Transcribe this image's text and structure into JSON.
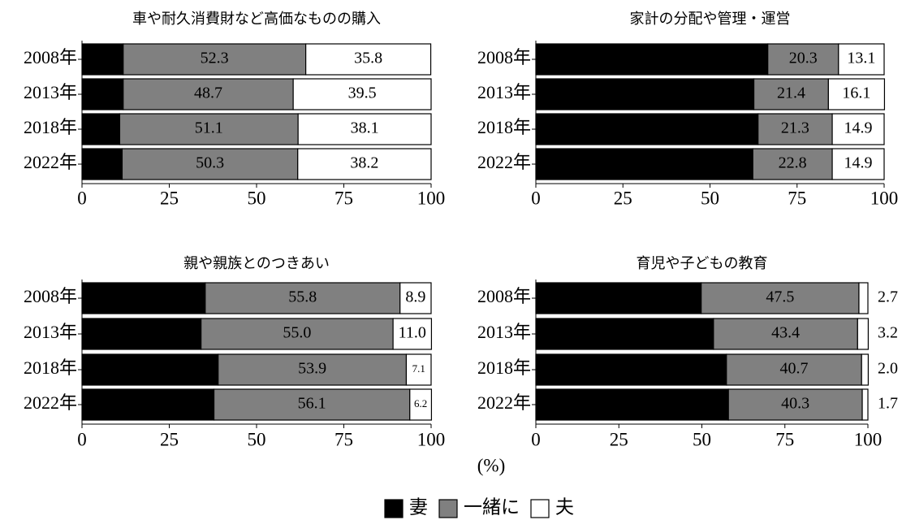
{
  "chart_data": [
    {
      "type": "bar",
      "orientation": "horizontal",
      "stacked": true,
      "title": "車や耐久消費財など高価なものの購入",
      "categories": [
        "2008年",
        "2013年",
        "2018年",
        "2022年"
      ],
      "series": [
        {
          "values": [
            11.8,
            11.8,
            10.8,
            11.5
          ],
          "value_labels": [
            "11.8",
            "11.8",
            "10.8",
            "11.5"
          ]
        },
        {
          "values": [
            52.3,
            48.7,
            51.1,
            50.3
          ],
          "value_labels": [
            "52.3",
            "48.7",
            "51.1",
            "50.3"
          ]
        },
        {
          "values": [
            35.8,
            39.5,
            38.1,
            38.2
          ],
          "value_labels": [
            "35.8",
            "39.5",
            "38.1",
            "38.2"
          ]
        }
      ],
      "xlim": [
        0,
        100
      ],
      "xticks": [
        0,
        25,
        50,
        75,
        100
      ]
    },
    {
      "type": "bar",
      "orientation": "horizontal",
      "stacked": true,
      "title": "家計の分配や管理・運営",
      "categories": [
        "2008年",
        "2013年",
        "2018年",
        "2022年"
      ],
      "series": [
        {
          "values": [
            66.6,
            62.6,
            63.8,
            62.3
          ],
          "value_labels": [
            "66.6",
            "62.6",
            "63.8",
            "62.3"
          ]
        },
        {
          "values": [
            20.3,
            21.4,
            21.3,
            22.8
          ],
          "value_labels": [
            "20.3",
            "21.4",
            "21.3",
            "22.8"
          ]
        },
        {
          "values": [
            13.1,
            16.1,
            14.9,
            14.9
          ],
          "value_labels": [
            "13.1",
            "16.1",
            "14.9",
            "14.9"
          ]
        }
      ],
      "xlim": [
        0,
        100
      ],
      "xticks": [
        0,
        25,
        50,
        75,
        100
      ]
    },
    {
      "type": "bar",
      "orientation": "horizontal",
      "stacked": true,
      "title": "親や親族とのつきあい",
      "categories": [
        "2008年",
        "2013年",
        "2018年",
        "2022年"
      ],
      "series": [
        {
          "values": [
            35.3,
            34.1,
            39.0,
            37.8
          ],
          "value_labels": [
            "35.3",
            "34.1",
            "39.0",
            "37.8"
          ]
        },
        {
          "values": [
            55.8,
            55.0,
            53.9,
            56.1
          ],
          "value_labels": [
            "55.8",
            "55.0",
            "53.9",
            "56.1"
          ]
        },
        {
          "values": [
            8.9,
            11.0,
            7.1,
            6.2
          ],
          "value_labels": [
            "8.9",
            "11.0",
            "7.1",
            "6.2"
          ]
        }
      ],
      "xlim": [
        0,
        100
      ],
      "xticks": [
        0,
        25,
        50,
        75,
        100
      ]
    },
    {
      "type": "bar",
      "orientation": "horizontal",
      "stacked": true,
      "title": "育児や子どもの教育",
      "categories": [
        "2008年",
        "2013年",
        "2018年",
        "2022年"
      ],
      "series": [
        {
          "values": [
            49.8,
            53.5,
            57.4,
            58.0
          ],
          "value_labels": [
            "49.8",
            "53.5",
            "57.4",
            "58.0"
          ]
        },
        {
          "values": [
            47.5,
            43.4,
            40.7,
            40.3
          ],
          "value_labels": [
            "47.5",
            "43.4",
            "40.7",
            "40.3"
          ]
        },
        {
          "values": [
            2.7,
            3.2,
            2.0,
            1.7
          ],
          "value_labels": [
            "2.7",
            "3.2",
            "2.0",
            "1.7"
          ]
        }
      ],
      "xlim": [
        0,
        100
      ],
      "xticks": [
        0,
        25,
        50,
        75,
        100
      ]
    }
  ],
  "legend": [
    {
      "name": "妻",
      "color": "#000000",
      "label_color": "#ffffff"
    },
    {
      "name": "一緒に",
      "color": "#808080",
      "label_color": "#333333"
    },
    {
      "name": "夫",
      "color": "#ffffff",
      "label_color": "#000000"
    }
  ],
  "xlabel": "(%)"
}
